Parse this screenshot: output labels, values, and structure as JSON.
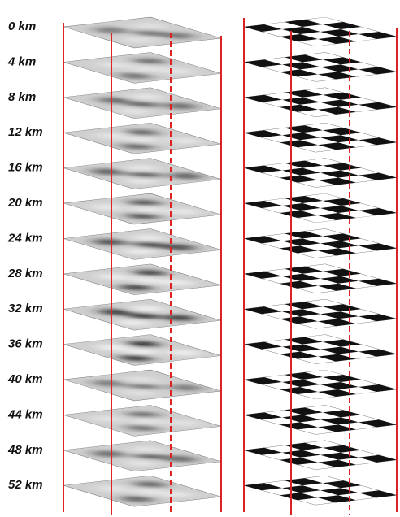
{
  "depth_labels": [
    "0 km",
    "4 km",
    "8 km",
    "12 km",
    "16 km",
    "20 km",
    "24 km",
    "28 km",
    "32 km",
    "36 km",
    "40 km",
    "44 km",
    "48 km",
    "52 km"
  ]
}
